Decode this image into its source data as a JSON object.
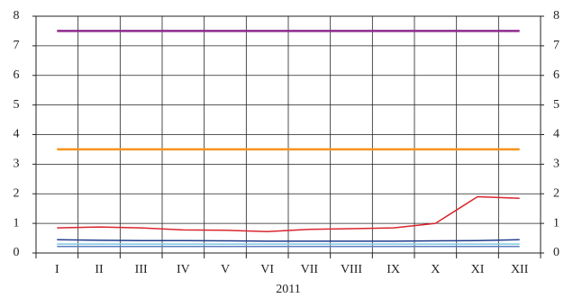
{
  "chart_data": {
    "type": "line",
    "x_label": "2011",
    "categories": [
      "I",
      "II",
      "III",
      "IV",
      "V",
      "VI",
      "VII",
      "VIII",
      "IX",
      "X",
      "XI",
      "XII"
    ],
    "series": [
      {
        "color": "#8e2a8e",
        "values": [
          7.5,
          7.5,
          7.5,
          7.5,
          7.5,
          7.5,
          7.5,
          7.5,
          7.5,
          7.5,
          7.5,
          7.5
        ]
      },
      {
        "color": "#f7931e",
        "values": [
          3.5,
          3.5,
          3.5,
          3.5,
          3.5,
          3.5,
          3.5,
          3.5,
          3.5,
          3.5,
          3.5,
          3.5
        ]
      },
      {
        "color": "#d9262e",
        "values": [
          0.85,
          0.88,
          0.85,
          0.78,
          0.77,
          0.72,
          0.8,
          0.82,
          0.85,
          1.0,
          1.9,
          1.85
        ]
      },
      {
        "color": "#1f3d8c",
        "values": [
          0.45,
          0.43,
          0.42,
          0.42,
          0.41,
          0.4,
          0.4,
          0.4,
          0.4,
          0.41,
          0.42,
          0.45
        ]
      },
      {
        "color": "#7ec8e3",
        "values": [
          0.3,
          0.3,
          0.3,
          0.3,
          0.3,
          0.3,
          0.3,
          0.3,
          0.3,
          0.3,
          0.3,
          0.3
        ]
      },
      {
        "color": "#5b7fc0",
        "values": [
          0.22,
          0.22,
          0.22,
          0.22,
          0.22,
          0.22,
          0.22,
          0.22,
          0.22,
          0.22,
          0.22,
          0.22
        ]
      }
    ],
    "ylim": [
      0,
      8
    ],
    "yticks": [
      0,
      1,
      2,
      3,
      4,
      5,
      6,
      7,
      8
    ],
    "y2lim": [
      0,
      8
    ],
    "y2ticks": [
      0,
      1,
      2,
      3,
      4,
      5,
      6,
      7,
      8
    ],
    "grid": true
  }
}
